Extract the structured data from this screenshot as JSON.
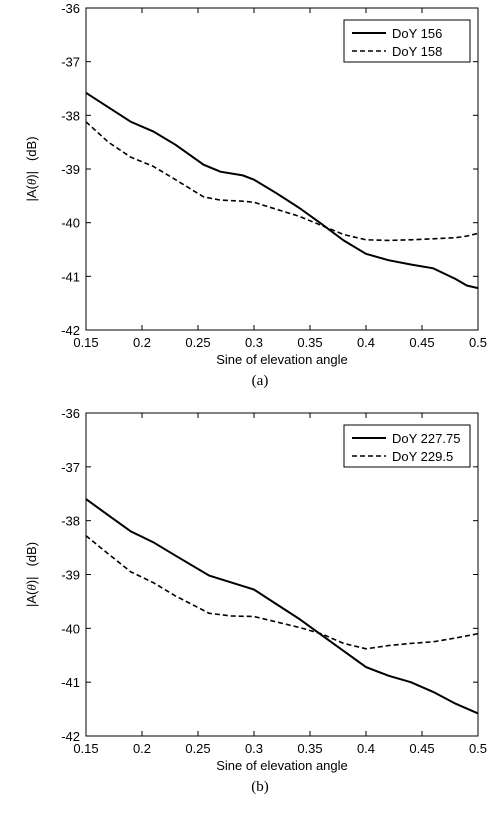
{
  "chart_data": [
    {
      "type": "line",
      "caption": "(a)",
      "xlabel": "Sine of elevation angle",
      "ylabel_pre": "|A(",
      "ylabel_theta": "θ",
      "ylabel_post": ")|",
      "ylabel_unit": "(dB)",
      "xlim": [
        0.15,
        0.5
      ],
      "ylim": [
        -42,
        -36
      ],
      "xticks": [
        0.15,
        0.2,
        0.25,
        0.3,
        0.35,
        0.4,
        0.45,
        0.5
      ],
      "xtick_labels": [
        "0.15",
        "0.2",
        "0.25",
        "0.3",
        "0.35",
        "0.4",
        "0.45",
        "0.5"
      ],
      "yticks": [
        -42,
        -41,
        -40,
        -39,
        -38,
        -37,
        -36
      ],
      "ytick_labels": [
        "-42",
        "-41",
        "-40",
        "-39",
        "-38",
        "-37",
        "-36"
      ],
      "grid": false,
      "legend_position": "top-right",
      "series": [
        {
          "name": "DoY 156",
          "style": "solid",
          "x": [
            0.15,
            0.17,
            0.19,
            0.21,
            0.23,
            0.255,
            0.27,
            0.29,
            0.3,
            0.32,
            0.34,
            0.36,
            0.38,
            0.4,
            0.42,
            0.44,
            0.46,
            0.48,
            0.49,
            0.5
          ],
          "y": [
            -37.58,
            -37.85,
            -38.12,
            -38.3,
            -38.55,
            -38.92,
            -39.05,
            -39.12,
            -39.2,
            -39.45,
            -39.72,
            -40.02,
            -40.33,
            -40.58,
            -40.7,
            -40.78,
            -40.85,
            -41.05,
            -41.17,
            -41.22
          ]
        },
        {
          "name": "DoY 158",
          "style": "dashed",
          "x": [
            0.15,
            0.17,
            0.19,
            0.21,
            0.23,
            0.255,
            0.27,
            0.29,
            0.3,
            0.32,
            0.34,
            0.36,
            0.38,
            0.4,
            0.42,
            0.44,
            0.46,
            0.48,
            0.49,
            0.5
          ],
          "y": [
            -38.12,
            -38.5,
            -38.78,
            -38.95,
            -39.2,
            -39.52,
            -39.58,
            -39.6,
            -39.62,
            -39.75,
            -39.88,
            -40.05,
            -40.22,
            -40.32,
            -40.33,
            -40.32,
            -40.3,
            -40.28,
            -40.25,
            -40.2
          ]
        }
      ]
    },
    {
      "type": "line",
      "caption": "(b)",
      "xlabel": "Sine of elevation angle",
      "ylabel_pre": "|A(",
      "ylabel_theta": "θ",
      "ylabel_post": ")|",
      "ylabel_unit": "(dB)",
      "xlim": [
        0.15,
        0.5
      ],
      "ylim": [
        -42,
        -36
      ],
      "xticks": [
        0.15,
        0.2,
        0.25,
        0.3,
        0.35,
        0.4,
        0.45,
        0.5
      ],
      "xtick_labels": [
        "0.15",
        "0.2",
        "0.25",
        "0.3",
        "0.35",
        "0.4",
        "0.45",
        "0.5"
      ],
      "yticks": [
        -42,
        -41,
        -40,
        -39,
        -38,
        -37,
        -36
      ],
      "ytick_labels": [
        "-42",
        "-41",
        "-40",
        "-39",
        "-38",
        "-37",
        "-36"
      ],
      "grid": false,
      "legend_position": "top-right",
      "series": [
        {
          "name": "DoY 227.75",
          "style": "solid",
          "x": [
            0.15,
            0.17,
            0.19,
            0.21,
            0.23,
            0.26,
            0.28,
            0.3,
            0.32,
            0.34,
            0.36,
            0.38,
            0.4,
            0.42,
            0.44,
            0.46,
            0.48,
            0.5
          ],
          "y": [
            -37.6,
            -37.9,
            -38.2,
            -38.4,
            -38.65,
            -39.02,
            -39.15,
            -39.28,
            -39.55,
            -39.82,
            -40.12,
            -40.42,
            -40.72,
            -40.88,
            -41.0,
            -41.18,
            -41.4,
            -41.58
          ]
        },
        {
          "name": "DoY 229.5",
          "style": "dashed",
          "x": [
            0.15,
            0.17,
            0.19,
            0.21,
            0.23,
            0.26,
            0.28,
            0.3,
            0.32,
            0.34,
            0.36,
            0.38,
            0.4,
            0.42,
            0.44,
            0.46,
            0.48,
            0.5
          ],
          "y": [
            -38.28,
            -38.62,
            -38.95,
            -39.15,
            -39.4,
            -39.72,
            -39.77,
            -39.78,
            -39.88,
            -39.98,
            -40.1,
            -40.28,
            -40.38,
            -40.32,
            -40.28,
            -40.25,
            -40.18,
            -40.1
          ]
        }
      ]
    }
  ]
}
